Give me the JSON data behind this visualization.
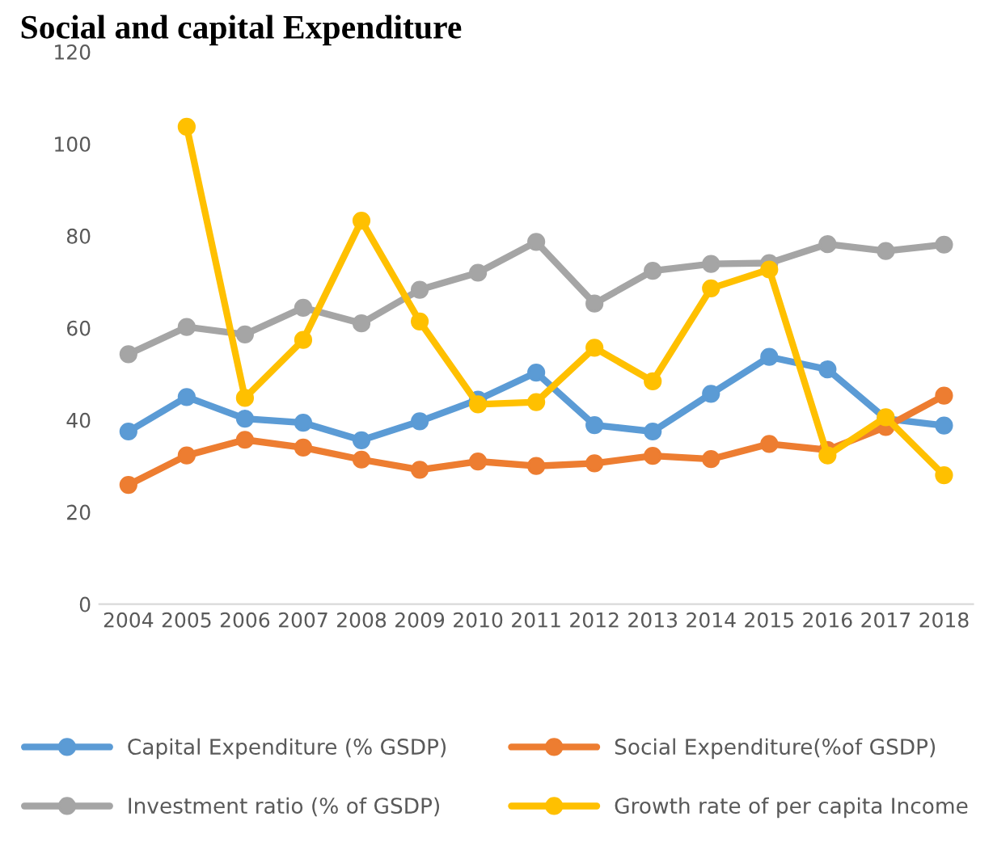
{
  "chart_data": {
    "type": "line",
    "title": "Social and capital Expenditure",
    "categories": [
      "2004",
      "2005",
      "2006",
      "2007",
      "2008",
      "2009",
      "2010",
      "2011",
      "2012",
      "2013",
      "2014",
      "2015",
      "2016",
      "2017",
      "2018"
    ],
    "series": [
      {
        "name": "Capital Expenditure (% GSDP)",
        "color": "#5b9bd5",
        "values": [
          37.5,
          45,
          40.3,
          39.4,
          35.6,
          39.7,
          44.4,
          50.3,
          38.9,
          37.5,
          45.7,
          53.7,
          51,
          40.3,
          38.8
        ]
      },
      {
        "name": "Social Expenditure(%of GSDP)",
        "color": "#ed7d31",
        "values": [
          25.9,
          32.3,
          35.7,
          34,
          31.4,
          29.2,
          31,
          30,
          30.6,
          32.2,
          31.5,
          34.8,
          33.5,
          38.5,
          45.3
        ]
      },
      {
        "name": "Investment ratio (% of GSDP)",
        "color": "#a5a5a5",
        "values": [
          54.3,
          60.2,
          58.6,
          64.4,
          61,
          68.3,
          72,
          78.7,
          65.3,
          72.4,
          73.9,
          74.1,
          78.2,
          76.7,
          78.1
        ]
      },
      {
        "name": "Growth rate of per capita Income",
        "color": "#ffc000",
        "values": [
          null,
          103.7,
          44.8,
          57.4,
          83.3,
          61.4,
          43.4,
          43.9,
          55.7,
          48.4,
          68.6,
          72.7,
          32.3,
          40.6,
          28
        ]
      }
    ],
    "ylim": [
      0,
      120
    ],
    "yticks": [
      0,
      20,
      40,
      60,
      80,
      100,
      120
    ],
    "grid": false,
    "legend": "bottom",
    "marker": "circle",
    "line_style": "solid"
  }
}
